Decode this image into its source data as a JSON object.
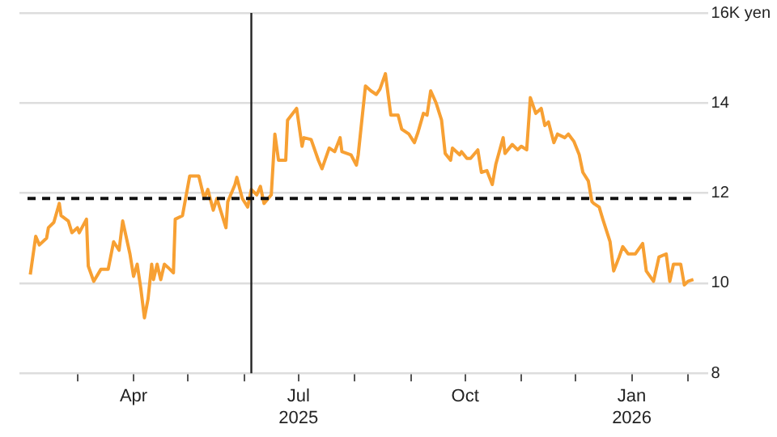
{
  "chart_data": {
    "type": "line",
    "legend": false,
    "grid": "y",
    "marker": "none",
    "line_style": "solid",
    "xlim": [
      "2025-01-28",
      "2026-02-12"
    ],
    "xticks": [
      {
        "value": "2025-03-01",
        "label": null
      },
      {
        "value": "2025-04-01",
        "label": "Apr"
      },
      {
        "value": "2025-05-01",
        "label": null
      },
      {
        "value": "2025-06-01",
        "label": null
      },
      {
        "value": "2025-07-01",
        "label": "Jul\n2025"
      },
      {
        "value": "2025-08-01",
        "label": null
      },
      {
        "value": "2025-09-01",
        "label": null
      },
      {
        "value": "2025-10-01",
        "label": "Oct"
      },
      {
        "value": "2025-11-01",
        "label": null
      },
      {
        "value": "2025-12-01",
        "label": null
      },
      {
        "value": "2026-01-01",
        "label": "Jan\n2026"
      },
      {
        "value": "2026-02-01",
        "label": null
      }
    ],
    "ylim": [
      8,
      16
    ],
    "yticks": [
      8,
      10,
      12,
      14,
      {
        "value": 16,
        "label": "16K yen"
      }
    ],
    "ref_lines": [
      {
        "axis": "x",
        "value": "2025-06-05",
        "color": "#222222",
        "line_style": "solid"
      },
      {
        "axis": "y",
        "value": 11.88,
        "color": "#111111",
        "line_style": "dashed"
      }
    ],
    "x": [
      "2025-02-03",
      "2025-02-06",
      "2025-02-08",
      "2025-02-12",
      "2025-02-13",
      "2025-02-16",
      "2025-02-19",
      "2025-02-20",
      "2025-02-24",
      "2025-02-26",
      "2025-03-01",
      "2025-03-02",
      "2025-03-06",
      "2025-03-07",
      "2025-03-10",
      "2025-03-14",
      "2025-03-18",
      "2025-03-21",
      "2025-03-24",
      "2025-03-26",
      "2025-03-30",
      "2025-04-01",
      "2025-04-03",
      "2025-04-05",
      "2025-04-07",
      "2025-04-09",
      "2025-04-11",
      "2025-04-12",
      "2025-04-14",
      "2025-04-16",
      "2025-04-18",
      "2025-04-20",
      "2025-04-23",
      "2025-04-24",
      "2025-04-28",
      "2025-05-02",
      "2025-05-07",
      "2025-05-10",
      "2025-05-12",
      "2025-05-15",
      "2025-05-17",
      "2025-05-19",
      "2025-05-22",
      "2025-05-23",
      "2025-05-27",
      "2025-05-28",
      "2025-05-31",
      "2025-06-03",
      "2025-06-05",
      "2025-06-08",
      "2025-06-10",
      "2025-06-12",
      "2025-06-16",
      "2025-06-18",
      "2025-06-20",
      "2025-06-24",
      "2025-06-25",
      "2025-06-30",
      "2025-07-03",
      "2025-07-04",
      "2025-07-08",
      "2025-07-12",
      "2025-07-14",
      "2025-07-18",
      "2025-07-21",
      "2025-07-24",
      "2025-07-25",
      "2025-07-30",
      "2025-08-02",
      "2025-08-03",
      "2025-08-07",
      "2025-08-10",
      "2025-08-13",
      "2025-08-15",
      "2025-08-18",
      "2025-08-21",
      "2025-08-25",
      "2025-08-27",
      "2025-08-31",
      "2025-09-03",
      "2025-09-05",
      "2025-09-08",
      "2025-09-10",
      "2025-09-12",
      "2025-09-15",
      "2025-09-18",
      "2025-09-20",
      "2025-09-23",
      "2025-09-24",
      "2025-09-28",
      "2025-09-29",
      "2025-10-02",
      "2025-10-04",
      "2025-10-08",
      "2025-10-10",
      "2025-10-13",
      "2025-10-16",
      "2025-10-18",
      "2025-10-22",
      "2025-10-23",
      "2025-10-27",
      "2025-10-30",
      "2025-11-01",
      "2025-11-04",
      "2025-11-06",
      "2025-11-09",
      "2025-11-12",
      "2025-11-14",
      "2025-11-16",
      "2025-11-19",
      "2025-11-21",
      "2025-11-25",
      "2025-11-27",
      "2025-11-30",
      "2025-12-03",
      "2025-12-05",
      "2025-12-08",
      "2025-12-10",
      "2025-12-11",
      "2025-12-14",
      "2025-12-16",
      "2025-12-20",
      "2025-12-22",
      "2025-12-25",
      "2025-12-27",
      "2025-12-30",
      "2026-01-03",
      "2026-01-07",
      "2026-01-09",
      "2026-01-13",
      "2026-01-16",
      "2026-01-20",
      "2026-01-22",
      "2026-01-24",
      "2026-01-28",
      "2026-01-30",
      "2026-02-01",
      "2026-02-04"
    ],
    "series": [
      {
        "color": "#f7a033",
        "values": [
          10.19,
          11.04,
          10.85,
          11.0,
          11.23,
          11.35,
          11.77,
          11.5,
          11.38,
          11.12,
          11.23,
          11.12,
          11.42,
          10.38,
          10.04,
          10.31,
          10.31,
          10.92,
          10.73,
          11.38,
          10.65,
          10.15,
          10.42,
          9.88,
          9.23,
          9.65,
          10.42,
          10.08,
          10.42,
          10.08,
          10.42,
          10.35,
          10.23,
          11.42,
          11.5,
          12.38,
          12.38,
          11.88,
          12.08,
          11.62,
          11.88,
          11.62,
          11.23,
          11.81,
          12.19,
          12.35,
          11.88,
          11.69,
          12.08,
          11.96,
          12.15,
          11.77,
          11.96,
          13.31,
          12.73,
          12.73,
          13.62,
          13.88,
          13.04,
          13.23,
          13.19,
          12.73,
          12.54,
          13.0,
          12.92,
          13.23,
          12.92,
          12.85,
          12.62,
          12.85,
          14.38,
          14.27,
          14.19,
          14.31,
          14.65,
          13.73,
          13.73,
          13.42,
          13.31,
          13.12,
          13.35,
          13.77,
          13.73,
          14.27,
          14.0,
          13.62,
          12.88,
          12.73,
          13.0,
          12.85,
          12.92,
          12.77,
          12.77,
          12.96,
          12.46,
          12.5,
          12.19,
          12.65,
          13.23,
          12.88,
          13.08,
          12.96,
          13.04,
          12.96,
          14.12,
          13.77,
          13.88,
          13.5,
          13.58,
          13.12,
          13.31,
          13.23,
          13.31,
          13.15,
          12.85,
          12.46,
          12.27,
          11.81,
          11.77,
          11.69,
          11.42,
          10.92,
          10.27,
          10.58,
          10.81,
          10.65,
          10.65,
          10.88,
          10.27,
          10.04,
          10.58,
          10.65,
          10.04,
          10.42,
          10.42,
          9.96,
          10.04,
          10.08
        ]
      }
    ]
  }
}
